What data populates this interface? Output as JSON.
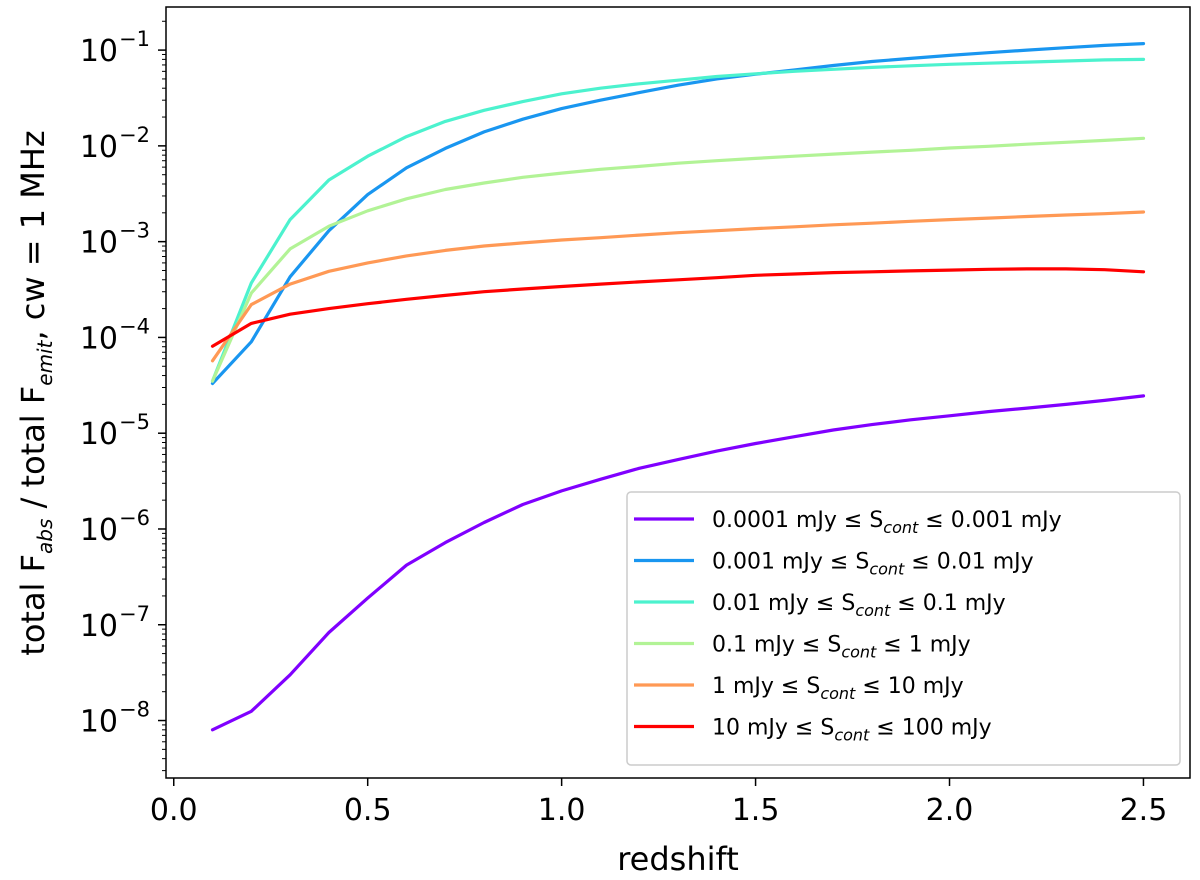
{
  "chart_data": {
    "type": "line",
    "title": "",
    "xlabel": "redshift",
    "ylabel_parts": [
      "total F",
      "abs",
      " / total F",
      "emit",
      ", cw = 1 MHz"
    ],
    "yscale": "log",
    "xlim": [
      -0.02,
      2.62
    ],
    "ylim_log10": [
      -8.6,
      -0.55
    ],
    "x_ticks": [
      0.0,
      0.5,
      1.0,
      1.5,
      2.0,
      2.5
    ],
    "x_tick_labels": [
      "0.0",
      "0.5",
      "1.0",
      "1.5",
      "2.0",
      "2.5"
    ],
    "y_ticks_log10": [
      -8,
      -7,
      -6,
      -5,
      -4,
      -3,
      -2,
      -1
    ],
    "y_tick_labels": [
      "10",
      "10",
      "10",
      "10",
      "10",
      "10",
      "10",
      "10"
    ],
    "y_tick_exponents": [
      "−8",
      "−7",
      "−6",
      "−5",
      "−4",
      "−3",
      "−2",
      "−1"
    ],
    "grid": false,
    "legend_position": "lower-right",
    "x": [
      0.1,
      0.2,
      0.3,
      0.4,
      0.5,
      0.6,
      0.7,
      0.8,
      0.9,
      1.0,
      1.1,
      1.2,
      1.3,
      1.4,
      1.5,
      1.6,
      1.7,
      1.8,
      1.9,
      2.0,
      2.1,
      2.2,
      2.3,
      2.4,
      2.5
    ],
    "series": [
      {
        "label_pre": "0.0001 mJy ≤ S",
        "label_sub": "cont",
        "label_post": " ≤ 0.001 mJy",
        "color": "#8000ff",
        "values": [
          8e-09,
          1.25e-08,
          3e-08,
          8.3e-08,
          1.9e-07,
          4.2e-07,
          7.2e-07,
          1.17e-06,
          1.8e-06,
          2.5e-06,
          3.3e-06,
          4.3e-06,
          5.3e-06,
          6.5e-06,
          7.8e-06,
          9.2e-06,
          1.08e-05,
          1.23e-05,
          1.38e-05,
          1.52e-05,
          1.68e-05,
          1.83e-05,
          2e-05,
          2.2e-05,
          2.45e-05
        ]
      },
      {
        "label_pre": "0.001 mJy ≤ S",
        "label_sub": "cont",
        "label_post": " ≤ 0.01 mJy",
        "color": "#1996f0",
        "values": [
          3.3e-05,
          9e-05,
          0.00043,
          0.0013,
          0.0031,
          0.0059,
          0.0094,
          0.014,
          0.019,
          0.0245,
          0.03,
          0.036,
          0.043,
          0.05,
          0.056,
          0.062,
          0.069,
          0.076,
          0.082,
          0.088,
          0.094,
          0.1,
          0.106,
          0.112,
          0.117
        ]
      },
      {
        "label_pre": "0.01 mJy ≤ S",
        "label_sub": "cont",
        "label_post": " ≤ 0.1 mJy",
        "color": "#4cf2ce",
        "values": [
          3.5e-05,
          0.00037,
          0.0017,
          0.0044,
          0.0078,
          0.0125,
          0.018,
          0.0235,
          0.029,
          0.035,
          0.04,
          0.0445,
          0.0485,
          0.053,
          0.0565,
          0.06,
          0.063,
          0.066,
          0.0685,
          0.071,
          0.073,
          0.075,
          0.077,
          0.079,
          0.08
        ]
      },
      {
        "label_pre": "0.1 mJy ≤ S",
        "label_sub": "cont",
        "label_post": " ≤ 1 mJy",
        "color": "#b2f396",
        "values": [
          3.5e-05,
          0.00029,
          0.00084,
          0.00145,
          0.0021,
          0.0028,
          0.0035,
          0.0041,
          0.0047,
          0.0052,
          0.0057,
          0.0061,
          0.0066,
          0.007,
          0.0074,
          0.0078,
          0.0082,
          0.0086,
          0.009,
          0.0095,
          0.0099,
          0.0104,
          0.0109,
          0.0114,
          0.012
        ]
      },
      {
        "label_pre": "1 mJy ≤ S",
        "label_sub": "cont",
        "label_post": " ≤ 10 mJy",
        "color": "#ff9955",
        "values": [
          5.7e-05,
          0.00022,
          0.00036,
          0.00049,
          0.0006,
          0.00071,
          0.00081,
          0.0009,
          0.00097,
          0.00104,
          0.0011,
          0.00117,
          0.00124,
          0.0013,
          0.00137,
          0.00143,
          0.0015,
          0.00156,
          0.00163,
          0.0017,
          0.00176,
          0.00183,
          0.0019,
          0.00196,
          0.00204
        ]
      },
      {
        "label_pre": "10 mJy ≤ S",
        "label_sub": "cont",
        "label_post": " ≤ 100 mJy",
        "color": "#ff0000",
        "values": [
          8.1e-05,
          0.00014,
          0.000175,
          0.0002,
          0.000225,
          0.00025,
          0.000275,
          0.0003,
          0.00032,
          0.00034,
          0.00036,
          0.00038,
          0.0004,
          0.00042,
          0.000445,
          0.00046,
          0.000475,
          0.000485,
          0.000495,
          0.000505,
          0.000515,
          0.00052,
          0.00052,
          0.00051,
          0.000485
        ]
      }
    ]
  }
}
